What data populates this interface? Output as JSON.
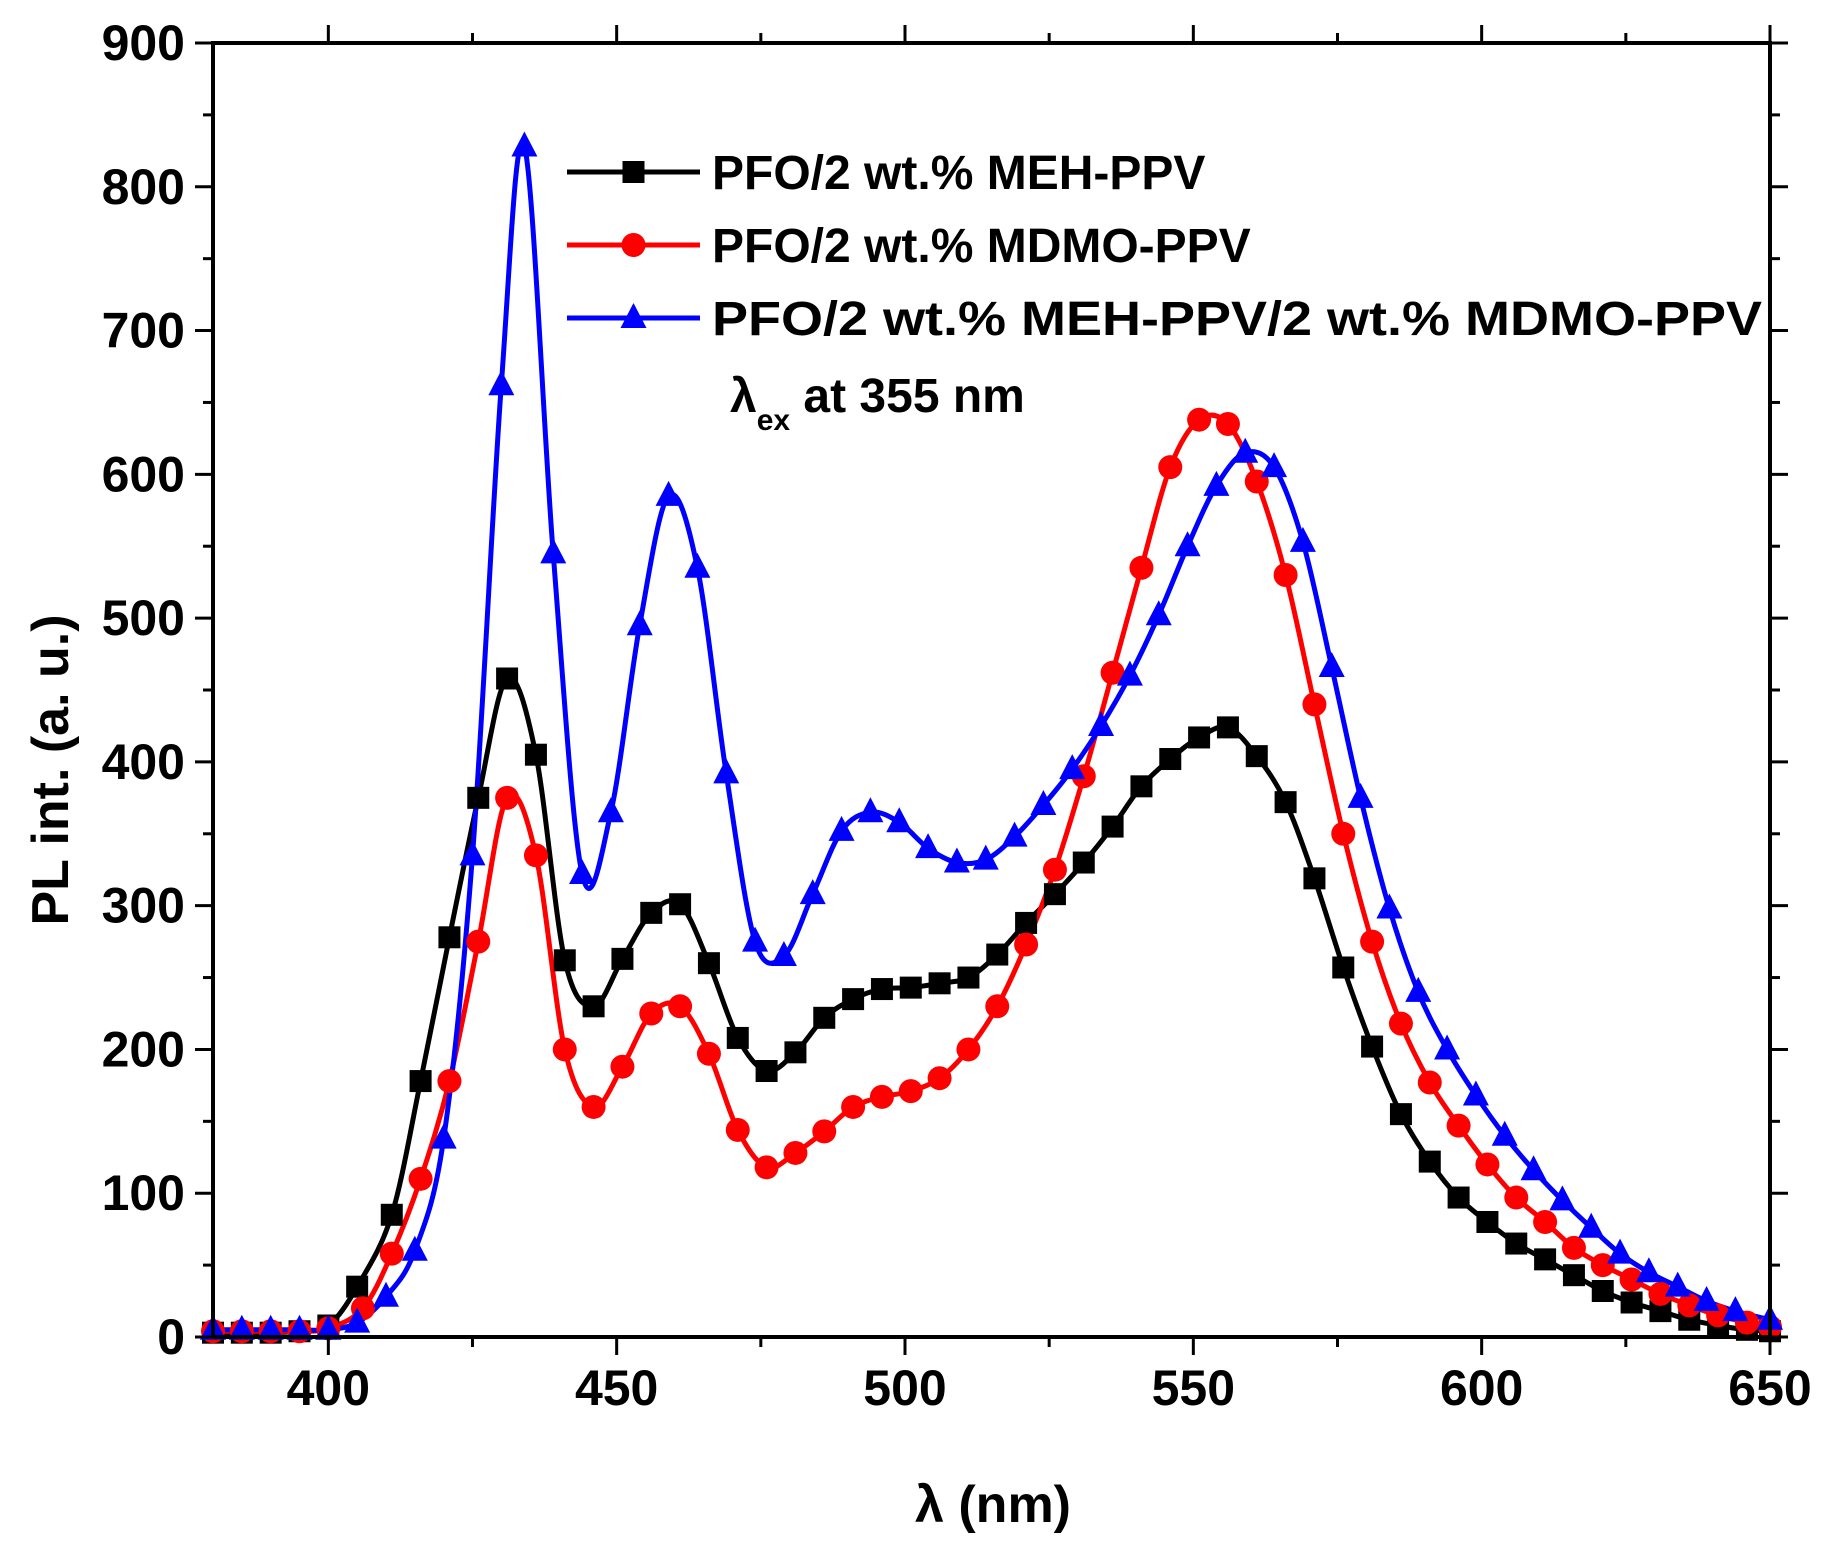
{
  "chart_data": {
    "type": "line",
    "title": "",
    "xlabel": "λ (nm)",
    "ylabel": "PL int. (a. u.)",
    "xlim": [
      380,
      650
    ],
    "ylim": [
      0,
      900
    ],
    "xticks": [
      400,
      450,
      500,
      550,
      600,
      650
    ],
    "yticks": [
      0,
      100,
      200,
      300,
      400,
      500,
      600,
      700,
      800,
      900
    ],
    "grid": false,
    "legend_position": "top-right",
    "annotation": {
      "symbol": "λ",
      "subscript": "ex",
      "text": " at 355 nm"
    },
    "series": [
      {
        "name": "PFO/2 wt.% MEH-PPV",
        "color": "#000000",
        "marker": "square",
        "x": [
          380,
          385,
          390,
          395,
          400,
          405,
          411,
          416,
          421,
          426,
          431,
          436,
          441,
          446,
          451,
          456,
          461,
          466,
          471,
          476,
          481,
          486,
          491,
          496,
          501,
          506,
          511,
          516,
          521,
          526,
          531,
          536,
          541,
          546,
          551,
          556,
          561,
          566,
          571,
          576,
          581,
          586,
          591,
          596,
          601,
          606,
          611,
          616,
          621,
          626,
          631,
          636,
          641,
          646,
          650
        ],
        "y": [
          3,
          3,
          3,
          4,
          8,
          35,
          85,
          178,
          278,
          375,
          458,
          405,
          262,
          230,
          263,
          295,
          301,
          260,
          208,
          185,
          198,
          222,
          235,
          242,
          243,
          246,
          250,
          266,
          288,
          308,
          330,
          355,
          383,
          402,
          417,
          424,
          404,
          372,
          319,
          257,
          202,
          155,
          122,
          97,
          80,
          65,
          54,
          43,
          32,
          24,
          18,
          12,
          8,
          5,
          4
        ]
      },
      {
        "name": "PFO/2 wt.% MDMO-PPV",
        "color": "#ff0000",
        "marker": "circle",
        "x": [
          380,
          385,
          390,
          395,
          400,
          406,
          411,
          416,
          421,
          426,
          431,
          436,
          441,
          446,
          451,
          456,
          461,
          466,
          471,
          476,
          481,
          486,
          491,
          496,
          501,
          506,
          511,
          516,
          521,
          526,
          531,
          536,
          541,
          546,
          551,
          556,
          561,
          566,
          571,
          576,
          581,
          586,
          591,
          596,
          601,
          606,
          611,
          616,
          621,
          626,
          631,
          636,
          641,
          646,
          650
        ],
        "y": [
          4,
          4,
          4,
          4,
          6,
          20,
          58,
          110,
          178,
          275,
          375,
          335,
          200,
          160,
          188,
          225,
          230,
          197,
          144,
          118,
          128,
          143,
          160,
          167,
          171,
          180,
          200,
          230,
          273,
          325,
          390,
          462,
          535,
          605,
          638,
          635,
          595,
          530,
          440,
          350,
          275,
          218,
          177,
          147,
          120,
          97,
          80,
          62,
          50,
          40,
          30,
          22,
          15,
          10,
          7
        ]
      },
      {
        "name": "PFO/2 wt.% MEH-PPV/2 wt.% MDMO-PPV",
        "color": "#0000ff",
        "marker": "triangle",
        "x": [
          380,
          385,
          390,
          395,
          400,
          405,
          410,
          415,
          420,
          425,
          430,
          434,
          439,
          444,
          449,
          454,
          459,
          464,
          469,
          474,
          479,
          484,
          489,
          494,
          499,
          504,
          509,
          514,
          519,
          524,
          529,
          534,
          539,
          544,
          549,
          554,
          559,
          564,
          569,
          574,
          579,
          584,
          589,
          594,
          599,
          604,
          609,
          614,
          619,
          624,
          629,
          634,
          639,
          644,
          650
        ],
        "y": [
          5,
          5,
          5,
          5,
          5,
          10,
          28,
          60,
          138,
          335,
          662,
          828,
          545,
          322,
          365,
          495,
          585,
          535,
          392,
          275,
          265,
          308,
          352,
          365,
          358,
          340,
          330,
          332,
          348,
          370,
          395,
          425,
          460,
          502,
          550,
          592,
          615,
          605,
          553,
          466,
          375,
          298,
          240,
          200,
          168,
          140,
          116,
          95,
          76,
          58,
          45,
          35,
          25,
          18,
          12
        ]
      }
    ]
  }
}
